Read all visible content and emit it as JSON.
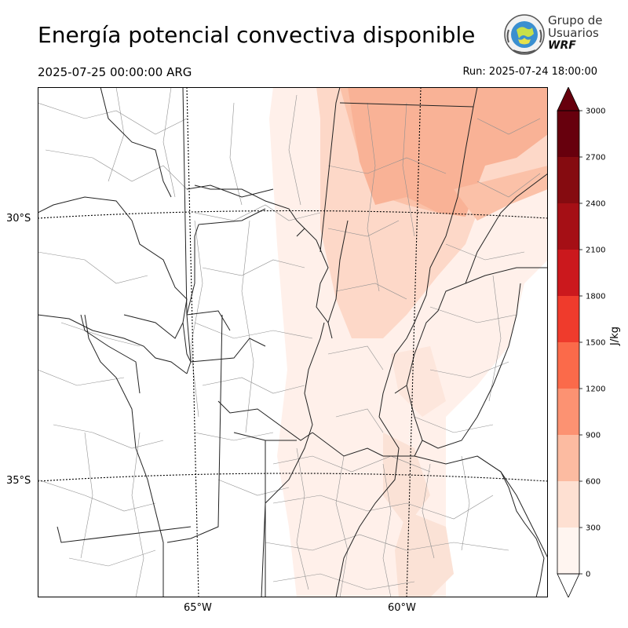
{
  "header": {
    "title": "Energía potencial convectiva disponible",
    "valid_time": "2025-07-25 00:00:00 ARG",
    "run_time": "Run: 2025-07-24 18:00:00"
  },
  "logo": {
    "line1": "Grupo de",
    "line2": "Usuarios",
    "line3": "WRF"
  },
  "axes": {
    "lat_labels": [
      "30°S",
      "35°S"
    ],
    "lon_labels": [
      "65°W",
      "60°W"
    ]
  },
  "colorbar": {
    "unit": "J/kg",
    "ticks": [
      "0",
      "300",
      "600",
      "900",
      "1200",
      "1500",
      "1800",
      "2100",
      "2400",
      "2700",
      "3000"
    ],
    "colors": [
      "#fff5f0",
      "#fee0d2",
      "#fcbba1",
      "#fc9272",
      "#fb6a4a",
      "#ef3b2c",
      "#cb181d",
      "#a50f15",
      "#850b10",
      "#67000d"
    ],
    "over_color": "#67000d"
  }
}
